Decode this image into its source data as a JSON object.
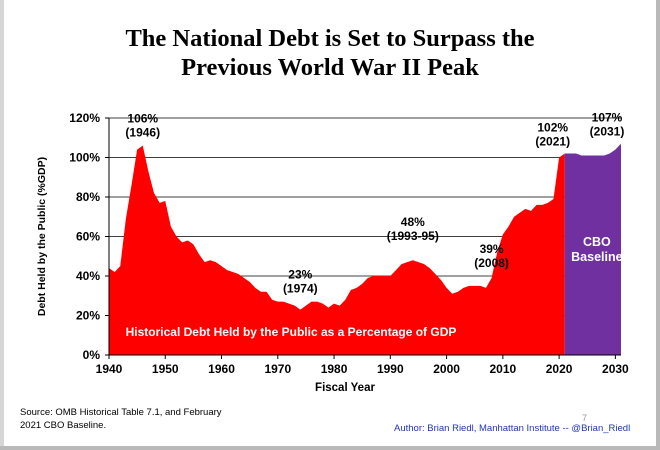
{
  "title_lines": [
    "The National Debt is Set to Surpass the",
    "Previous World War II Peak"
  ],
  "source_lines": [
    "Source: OMB Historical Table 7.1, and February",
    "2021 CBO Baseline."
  ],
  "author": "Author: Brian Riedl, Manhattan Institute -- @Brian_Riedl",
  "page_number": "7",
  "chart_data": {
    "type": "area",
    "xlabel": "Fiscal Year",
    "ylabel": "Debt Held by the Public (%GDP)",
    "xlim": [
      1940,
      2031
    ],
    "ylim": [
      0,
      120
    ],
    "x_ticks": [
      1940,
      1950,
      1960,
      1970,
      1980,
      1990,
      2000,
      2010,
      2020,
      2030
    ],
    "y_ticks": [
      0,
      20,
      40,
      60,
      80,
      100,
      120
    ],
    "y_tick_labels": [
      "0%",
      "20%",
      "40%",
      "60%",
      "80%",
      "100%",
      "120%"
    ],
    "grid": "horizontal",
    "colors": {
      "historical": "#ff0000",
      "baseline": "#7030a0",
      "background": "#ffffff"
    },
    "series": [
      {
        "name": "Historical Debt Held by the Public as a Percentage of GDP",
        "color": "#ff0000",
        "x": [
          1940,
          1941,
          1942,
          1943,
          1944,
          1945,
          1946,
          1947,
          1948,
          1949,
          1950,
          1951,
          1952,
          1953,
          1954,
          1955,
          1956,
          1957,
          1958,
          1959,
          1960,
          1961,
          1962,
          1963,
          1964,
          1965,
          1966,
          1967,
          1968,
          1969,
          1970,
          1971,
          1972,
          1973,
          1974,
          1975,
          1976,
          1977,
          1978,
          1979,
          1980,
          1981,
          1982,
          1983,
          1984,
          1985,
          1986,
          1987,
          1988,
          1989,
          1990,
          1991,
          1992,
          1993,
          1994,
          1995,
          1996,
          1997,
          1998,
          1999,
          2000,
          2001,
          2002,
          2003,
          2004,
          2005,
          2006,
          2007,
          2008,
          2009,
          2010,
          2011,
          2012,
          2013,
          2014,
          2015,
          2016,
          2017,
          2018,
          2019,
          2020,
          2021
        ],
        "values": [
          44,
          42,
          45,
          69,
          86,
          104,
          106,
          93,
          82,
          77,
          78,
          65,
          60,
          57,
          58,
          56,
          51,
          47,
          48,
          47,
          45,
          43,
          42,
          41,
          39,
          37,
          34,
          32,
          32,
          28,
          27,
          27,
          26,
          25,
          23,
          25,
          27,
          27,
          26,
          24,
          26,
          25,
          28,
          33,
          34,
          36,
          39,
          40,
          40,
          40,
          40,
          43,
          46,
          47,
          48,
          47,
          46,
          44,
          41,
          38,
          34,
          31,
          32,
          34,
          35,
          35,
          35,
          34,
          39,
          52,
          61,
          65,
          70,
          72,
          74,
          73,
          76,
          76,
          77,
          79,
          100,
          102
        ]
      },
      {
        "name": "CBO Baseline",
        "color": "#7030a0",
        "x": [
          2021,
          2022,
          2023,
          2024,
          2025,
          2026,
          2027,
          2028,
          2029,
          2030,
          2031
        ],
        "values": [
          102,
          102,
          102,
          101,
          101,
          101,
          101,
          101,
          102,
          104,
          107
        ]
      }
    ],
    "annotations": [
      {
        "text": "106%",
        "text2": "(1946)",
        "x": 1946,
        "y": 106
      },
      {
        "text": "23%",
        "text2": "(1974)",
        "x": 1974,
        "y": 23
      },
      {
        "text": "48%",
        "text2": "(1993-95)",
        "x": 1994,
        "y": 48
      },
      {
        "text": "39%",
        "text2": "(2008)",
        "x": 2008,
        "y": 39
      },
      {
        "text": "102%",
        "text2": "(2021)",
        "x": 2021,
        "y": 102
      },
      {
        "text": "107%",
        "text2": "(2031)",
        "x": 2031,
        "y": 107
      }
    ],
    "baseline_label": [
      "CBO",
      "Baseline"
    ],
    "historical_label": "Historical Debt Held by the Public as a Percentage of GDP"
  }
}
